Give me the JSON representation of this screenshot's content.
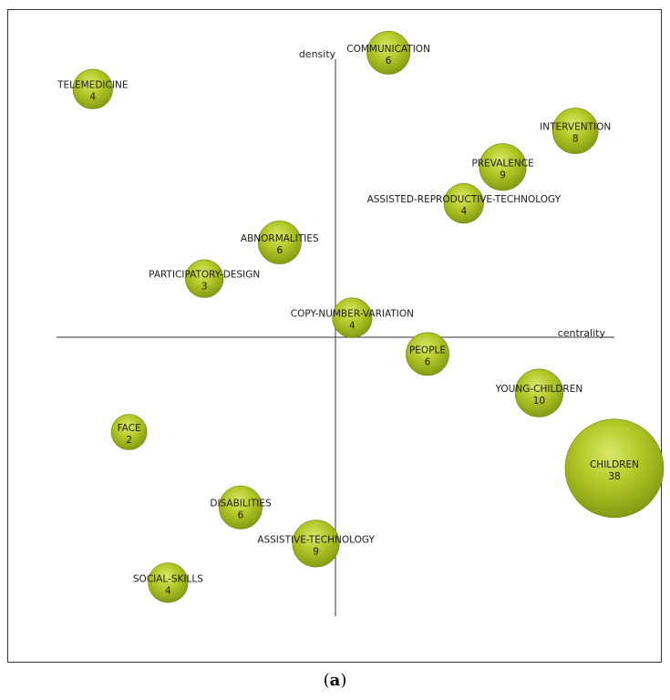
{
  "chart_data": {
    "type": "scatter",
    "xlabel": "centrality",
    "ylabel": "density",
    "color": "#a8c21c",
    "points": [
      {
        "name": "COMMUNICATION",
        "count": 6,
        "x": 0.19,
        "y": 1.02
      },
      {
        "name": "TELEMEDICINE",
        "count": 4,
        "x": -0.87,
        "y": 0.89
      },
      {
        "name": "INTERVENTION",
        "count": 8,
        "x": 0.86,
        "y": 0.74
      },
      {
        "name": "PREVALENCE",
        "count": 9,
        "x": 0.6,
        "y": 0.61
      },
      {
        "name": "ASSISTED-REPRODUCTIVE-TECHNOLOGY",
        "count": 4,
        "x": 0.46,
        "y": 0.48
      },
      {
        "name": "ABNORMALITIES",
        "count": 6,
        "x": -0.2,
        "y": 0.34
      },
      {
        "name": "PARTICIPATORY-DESIGN",
        "count": 3,
        "x": -0.47,
        "y": 0.21
      },
      {
        "name": "COPY-NUMBER-VARIATION",
        "count": 4,
        "x": 0.06,
        "y": 0.07
      },
      {
        "name": "PEOPLE",
        "count": 6,
        "x": 0.33,
        "y": -0.06
      },
      {
        "name": "YOUNG-CHILDREN",
        "count": 10,
        "x": 0.73,
        "y": -0.2
      },
      {
        "name": "FACE",
        "count": 2,
        "x": -0.74,
        "y": -0.34
      },
      {
        "name": "CHILDREN",
        "count": 38,
        "x": 1.0,
        "y": -0.47
      },
      {
        "name": "DISABILITIES",
        "count": 6,
        "x": -0.34,
        "y": -0.61
      },
      {
        "name": "ASSISTIVE-TECHNOLOGY",
        "count": 9,
        "x": -0.07,
        "y": -0.74
      },
      {
        "name": "SOCIAL-SKILLS",
        "count": 4,
        "x": -0.6,
        "y": -0.88
      }
    ]
  },
  "caption": {
    "open": "(",
    "label": "a",
    "close": ")"
  }
}
